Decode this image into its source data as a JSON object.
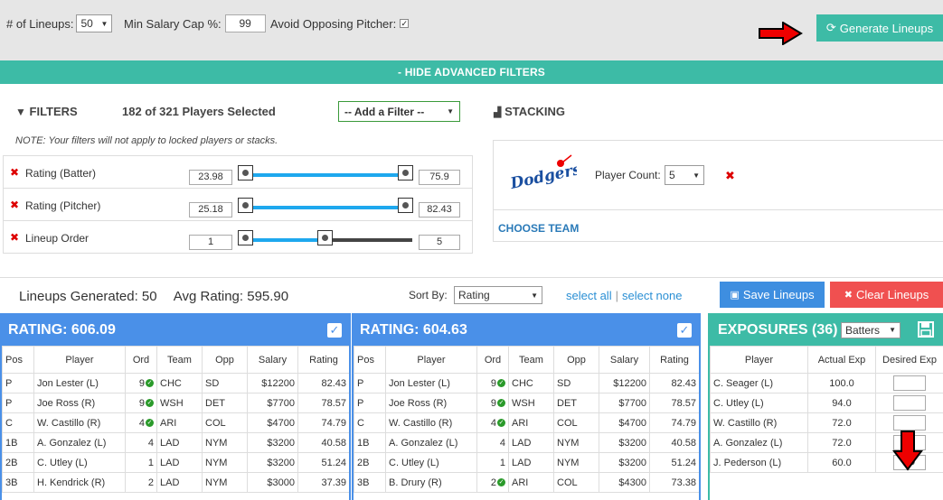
{
  "top": {
    "lineups_label": "# of Lineups:",
    "lineups_value": "50",
    "min_salary_label": "Min Salary Cap %:",
    "min_salary_value": "99",
    "avoid_pitcher_label": "Avoid Opposing Pitcher:",
    "avoid_pitcher_checked": "✓",
    "generate_label": "Generate Lineups",
    "generate_icon": "refresh-icon"
  },
  "advanced": {
    "hide_label": "- HIDE ADVANCED FILTERS"
  },
  "filters": {
    "title": "FILTERS",
    "players_selected": "182 of 321 Players Selected",
    "add_filter": "-- Add a Filter --",
    "note": "NOTE: Your filters will not apply to locked players or stacks.",
    "rows": [
      {
        "label": "Rating (Batter)",
        "min": "23.98",
        "max": "75.9"
      },
      {
        "label": "Rating (Pitcher)",
        "min": "25.18",
        "max": "82.43"
      },
      {
        "label": "Lineup Order",
        "min": "1",
        "max": "5"
      }
    ]
  },
  "stacking": {
    "title": "STACKING",
    "team_logo": "Dodgers",
    "player_count_label": "Player Count:",
    "player_count_value": "5",
    "choose_team": "CHOOSE TEAM"
  },
  "summary": {
    "lineups_generated": "Lineups Generated: 50",
    "avg_rating": "Avg Rating: 595.90",
    "sort_by_label": "Sort By:",
    "sort_by_value": "Rating",
    "select_all": "select all",
    "select_none": "select none",
    "save_label": "Save Lineups",
    "clear_label": "Clear Lineups"
  },
  "columns": [
    "Pos",
    "Player",
    "Ord",
    "Team",
    "Opp",
    "Salary",
    "Rating"
  ],
  "lineups": [
    {
      "title": "RATING: 606.09",
      "rows": [
        {
          "pos": "P",
          "player": "Jon Lester (L)",
          "ord": "9",
          "team": "CHC",
          "opp": "SD",
          "salary": "$12200",
          "rating": "82.43",
          "confirmed": true
        },
        {
          "pos": "P",
          "player": "Joe Ross (R)",
          "ord": "9",
          "team": "WSH",
          "opp": "DET",
          "salary": "$7700",
          "rating": "78.57",
          "confirmed": true
        },
        {
          "pos": "C",
          "player": "W. Castillo (R)",
          "ord": "4",
          "team": "ARI",
          "opp": "COL",
          "salary": "$4700",
          "rating": "74.79",
          "confirmed": true
        },
        {
          "pos": "1B",
          "player": "A. Gonzalez (L)",
          "ord": "4",
          "team": "LAD",
          "opp": "NYM",
          "salary": "$3200",
          "rating": "40.58",
          "confirmed": false
        },
        {
          "pos": "2B",
          "player": "C. Utley (L)",
          "ord": "1",
          "team": "LAD",
          "opp": "NYM",
          "salary": "$3200",
          "rating": "51.24",
          "confirmed": false
        },
        {
          "pos": "3B",
          "player": "H. Kendrick (R)",
          "ord": "2",
          "team": "LAD",
          "opp": "NYM",
          "salary": "$3000",
          "rating": "37.39",
          "confirmed": false
        }
      ]
    },
    {
      "title": "RATING: 604.63",
      "rows": [
        {
          "pos": "P",
          "player": "Jon Lester (L)",
          "ord": "9",
          "team": "CHC",
          "opp": "SD",
          "salary": "$12200",
          "rating": "82.43",
          "confirmed": true
        },
        {
          "pos": "P",
          "player": "Joe Ross (R)",
          "ord": "9",
          "team": "WSH",
          "opp": "DET",
          "salary": "$7700",
          "rating": "78.57",
          "confirmed": true
        },
        {
          "pos": "C",
          "player": "W. Castillo (R)",
          "ord": "4",
          "team": "ARI",
          "opp": "COL",
          "salary": "$4700",
          "rating": "74.79",
          "confirmed": true
        },
        {
          "pos": "1B",
          "player": "A. Gonzalez (L)",
          "ord": "4",
          "team": "LAD",
          "opp": "NYM",
          "salary": "$3200",
          "rating": "40.58",
          "confirmed": false
        },
        {
          "pos": "2B",
          "player": "C. Utley (L)",
          "ord": "1",
          "team": "LAD",
          "opp": "NYM",
          "salary": "$3200",
          "rating": "51.24",
          "confirmed": false
        },
        {
          "pos": "3B",
          "player": "B. Drury (R)",
          "ord": "2",
          "team": "ARI",
          "opp": "COL",
          "salary": "$4300",
          "rating": "73.38",
          "confirmed": true
        }
      ]
    }
  ],
  "exposures": {
    "title": "EXPOSURES (36)",
    "filter_value": "Batters",
    "columns": [
      "Player",
      "Actual Exp",
      "Desired Exp"
    ],
    "rows": [
      {
        "player": "C. Seager (L)",
        "actual": "100.0",
        "desired": ""
      },
      {
        "player": "C. Utley (L)",
        "actual": "94.0",
        "desired": ""
      },
      {
        "player": "W. Castillo (R)",
        "actual": "72.0",
        "desired": ""
      },
      {
        "player": "A. Gonzalez (L)",
        "actual": "72.0",
        "desired": ""
      },
      {
        "player": "J. Pederson (L)",
        "actual": "60.0",
        "desired": "80"
      }
    ]
  },
  "colors": {
    "teal": "#3dbba6",
    "blue": "#4a90e8",
    "red": "#f05050",
    "slider": "#1ea8ee"
  }
}
